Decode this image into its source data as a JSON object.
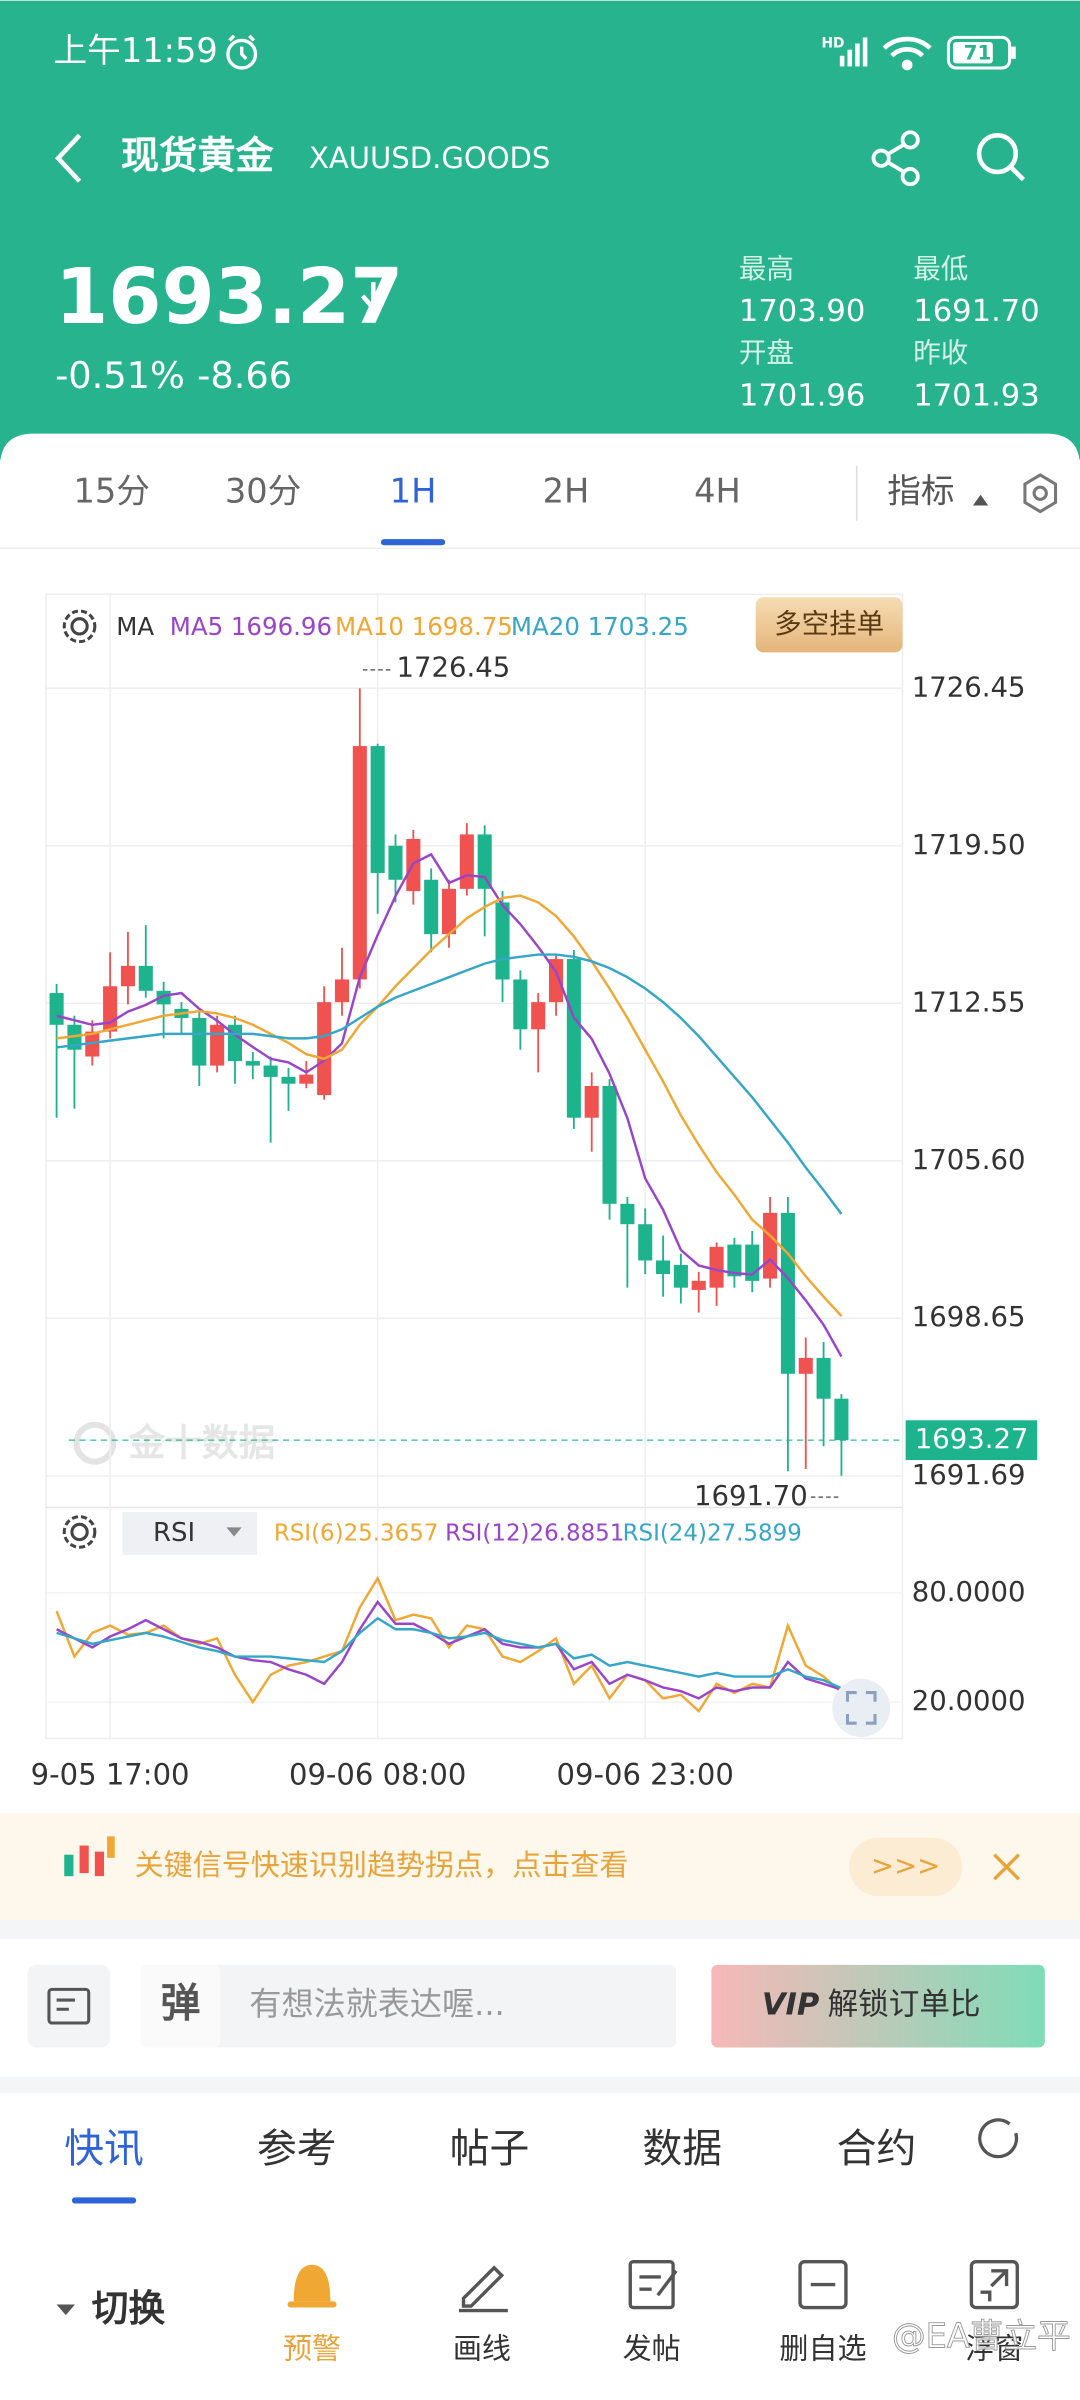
{
  "status_bar": {
    "time": "上午11:59",
    "network": "HD",
    "battery": "71"
  },
  "header": {
    "title": "现货黄金",
    "symbol": "XAUUSD.GOODS"
  },
  "quote": {
    "price": "1693.27",
    "change_pct": "-0.51%",
    "change": "-8.66",
    "stats": [
      {
        "label": "最高",
        "value": "1703.90"
      },
      {
        "label": "最低",
        "value": "1691.70"
      },
      {
        "label": "开盘",
        "value": "1701.96"
      },
      {
        "label": "昨收",
        "value": "1701.93"
      }
    ]
  },
  "timeframes": {
    "items": [
      "15分",
      "30分",
      "1H",
      "2H",
      "4H"
    ],
    "active": 2,
    "indicator": "指标"
  },
  "chart_data": [
    {
      "type": "candlestick",
      "indicator": "MA",
      "button": "多空挂单",
      "watermark": "金十数据",
      "up_color": "#f0524f",
      "down_color": "#1db38c",
      "categories": [
        null,
        null,
        null,
        "9-05 17:00",
        null,
        null,
        null,
        null,
        null,
        null,
        null,
        null,
        null,
        null,
        null,
        null,
        null,
        null,
        "09-06 08:00",
        null,
        null,
        null,
        null,
        null,
        null,
        null,
        null,
        null,
        null,
        null,
        null,
        null,
        null,
        "09-06 23:00",
        null,
        null,
        null,
        null,
        null,
        null,
        null,
        null,
        null,
        null,
        null
      ],
      "open": [
        1713.0,
        1711.6,
        1710.2,
        1711.3,
        1713.3,
        1714.2,
        1713.1,
        1712.3,
        1711.9,
        1709.8,
        1711.6,
        1710.0,
        1709.8,
        1709.3,
        1709.0,
        1708.5,
        1712.6,
        1713.6,
        1723.9,
        1719.5,
        1717.5,
        1718.0,
        1715.6,
        1717.6,
        1720.0,
        1717.0,
        1713.6,
        1711.4,
        1712.6,
        1714.5,
        1707.5,
        1708.9,
        1703.7,
        1702.8,
        1701.2,
        1701.0,
        1699.9,
        1700.0,
        1701.9,
        1701.9,
        1700.4,
        1703.3,
        1696.2,
        1696.9,
        1695.1
      ],
      "high": [
        1713.4,
        1712.0,
        1711.8,
        1714.8,
        1715.7,
        1716.0,
        1713.5,
        1712.6,
        1712.2,
        1712.0,
        1712.0,
        1710.4,
        1710.2,
        1709.7,
        1710.0,
        1713.3,
        1715.0,
        1726.45,
        1724.0,
        1720.0,
        1720.2,
        1718.5,
        1718.0,
        1720.5,
        1720.4,
        1717.5,
        1714.0,
        1713.0,
        1714.7,
        1714.9,
        1709.5,
        1709.2,
        1704.0,
        1703.5,
        1702.3,
        1701.5,
        1700.7,
        1702.0,
        1702.2,
        1702.5,
        1704.0,
        1704.0,
        1697.8,
        1697.6,
        1695.3
      ],
      "low": [
        1707.5,
        1707.9,
        1709.8,
        1711.0,
        1712.5,
        1712.8,
        1711.0,
        1711.2,
        1708.9,
        1709.5,
        1709.0,
        1709.2,
        1706.4,
        1707.8,
        1708.8,
        1708.3,
        1712.0,
        1713.2,
        1716.5,
        1717.0,
        1716.9,
        1714.8,
        1715.0,
        1717.3,
        1715.5,
        1712.6,
        1710.5,
        1709.5,
        1712.0,
        1707.0,
        1706.0,
        1703.0,
        1700.0,
        1700.6,
        1699.6,
        1699.3,
        1698.9,
        1699.2,
        1700.0,
        1699.8,
        1700.0,
        1691.9,
        1692.0,
        1693.0,
        1691.7
      ],
      "close": [
        1711.6,
        1710.5,
        1711.3,
        1713.3,
        1714.2,
        1713.1,
        1712.5,
        1711.9,
        1709.8,
        1711.6,
        1710.0,
        1709.8,
        1709.3,
        1709.0,
        1709.4,
        1712.6,
        1713.6,
        1723.9,
        1718.3,
        1718.0,
        1719.8,
        1715.6,
        1717.6,
        1720.0,
        1717.6,
        1713.6,
        1711.4,
        1712.6,
        1714.5,
        1707.5,
        1708.9,
        1703.7,
        1702.8,
        1701.2,
        1700.6,
        1700.0,
        1700.3,
        1701.8,
        1700.5,
        1700.3,
        1703.3,
        1696.2,
        1696.9,
        1695.1,
        1693.27
      ],
      "series": [
        {
          "name": "MA5",
          "color": "#9a45c9",
          "values": [
            1712.0,
            1711.8,
            1711.6,
            1711.7,
            1712.18,
            1712.48,
            1712.88,
            1713.0,
            1712.3,
            1711.78,
            1711.16,
            1710.62,
            1710.1,
            1709.94,
            1709.5,
            1710.02,
            1710.78,
            1713.7,
            1715.56,
            1717.28,
            1718.72,
            1719.12,
            1717.86,
            1718.2,
            1718.12,
            1716.88,
            1716.04,
            1715.04,
            1713.94,
            1711.92,
            1710.98,
            1709.44,
            1707.48,
            1704.82,
            1703.44,
            1701.66,
            1700.98,
            1700.78,
            1700.64,
            1700.58,
            1701.24,
            1700.42,
            1699.44,
            1698.36,
            1696.96
          ]
        },
        {
          "name": "MA10",
          "color": "#f0a733",
          "values": [
            1711.0,
            1711.1,
            1711.2,
            1711.4,
            1711.6,
            1711.8,
            1712.0,
            1712.1,
            1712.2,
            1712.1,
            1711.9,
            1711.6,
            1711.2,
            1710.8,
            1710.3,
            1710.1,
            1710.5,
            1711.6,
            1712.4,
            1713.3,
            1714.1,
            1714.9,
            1715.6,
            1716.3,
            1716.8,
            1717.2,
            1717.3,
            1717.0,
            1716.4,
            1715.5,
            1714.4,
            1713.2,
            1711.9,
            1710.5,
            1709.1,
            1707.6,
            1706.3,
            1705.1,
            1704.1,
            1703.0,
            1702.3,
            1701.5,
            1700.5,
            1699.6,
            1698.75
          ]
        },
        {
          "name": "MA20",
          "color": "#35a6c8",
          "values": [
            1710.6,
            1710.7,
            1710.8,
            1710.9,
            1711.0,
            1711.1,
            1711.2,
            1711.2,
            1711.2,
            1711.2,
            1711.2,
            1711.2,
            1711.1,
            1711.0,
            1711.0,
            1711.1,
            1711.4,
            1711.9,
            1712.4,
            1712.8,
            1713.1,
            1713.4,
            1713.7,
            1714.0,
            1714.3,
            1714.5,
            1714.6,
            1714.7,
            1714.7,
            1714.6,
            1714.4,
            1714.1,
            1713.7,
            1713.2,
            1712.6,
            1711.9,
            1711.1,
            1710.2,
            1709.3,
            1708.4,
            1707.4,
            1706.4,
            1705.3,
            1704.3,
            1703.25
          ]
        }
      ],
      "ylim": [
        1690.3,
        1730.6
      ],
      "yticks": [
        1726.45,
        {
          "value": 1719.5,
          "label": "1719.50"
        },
        1712.55,
        {
          "value": 1705.6,
          "label": "1705.60"
        },
        1698.65,
        1691.69
      ],
      "max": 1726.45,
      "min": {
        "value": 1691.7,
        "label": "1691.70"
      },
      "last": 1693.27,
      "last_color": "#1db38c"
    },
    {
      "type": "line",
      "indicator": "RSI",
      "series": [
        {
          "name": "RSI(6)",
          "color": "#f0a733",
          "values": [
            70,
            45,
            58,
            62,
            57,
            58,
            62,
            55,
            52,
            55,
            35,
            20,
            35,
            40,
            42,
            45,
            48,
            72,
            88,
            65,
            68,
            66,
            50,
            62,
            60,
            45,
            42,
            48,
            55,
            30,
            40,
            22,
            35,
            32,
            22,
            24,
            15,
            30,
            25,
            30,
            28,
            62,
            40,
            34,
            25.3657
          ]
        },
        {
          "name": "RSI(12)",
          "color": "#9a45c9",
          "values": [
            60,
            55,
            50,
            56,
            60,
            65,
            60,
            55,
            53,
            50,
            45,
            43,
            42,
            38,
            35,
            30,
            42,
            60,
            75,
            63,
            63,
            58,
            52,
            56,
            60,
            52,
            50,
            50,
            52,
            38,
            42,
            30,
            35,
            32,
            28,
            26,
            22,
            28,
            26,
            28,
            28,
            42,
            33,
            30,
            26.8851
          ]
        },
        {
          "name": "RSI(24)",
          "color": "#35a6c8",
          "values": [
            58,
            55,
            52,
            54,
            56,
            58,
            56,
            53,
            50,
            48,
            45,
            45,
            45,
            44,
            43,
            42,
            48,
            58,
            66,
            60,
            60,
            58,
            55,
            56,
            58,
            54,
            52,
            50,
            52,
            44,
            46,
            40,
            42,
            40,
            38,
            36,
            34,
            36,
            34,
            34,
            34,
            38,
            34,
            32,
            27.5899
          ]
        }
      ],
      "ylim": [
        0,
        100
      ],
      "yticks": [
        {
          "value": 80,
          "label": "80.0000"
        },
        {
          "value": 20,
          "label": "20.0000"
        }
      ]
    }
  ],
  "banner": {
    "text": "关键信号快速识别趋势拐点，点击查看",
    "button": ">>>"
  },
  "composer": {
    "badge": "弹",
    "placeholder": "有想法就表达喔...",
    "vip_badge": "VIP",
    "vip_button": "解锁订单比"
  },
  "tabs": {
    "items": [
      "快讯",
      "参考",
      "帖子",
      "数据",
      "合约"
    ],
    "active": 0
  },
  "toolbar": {
    "switch": "切换",
    "items": [
      "预警",
      "画线",
      "发帖",
      "删自选",
      "浮窗"
    ],
    "active": 0
  },
  "watermark": "@EA曹立平"
}
